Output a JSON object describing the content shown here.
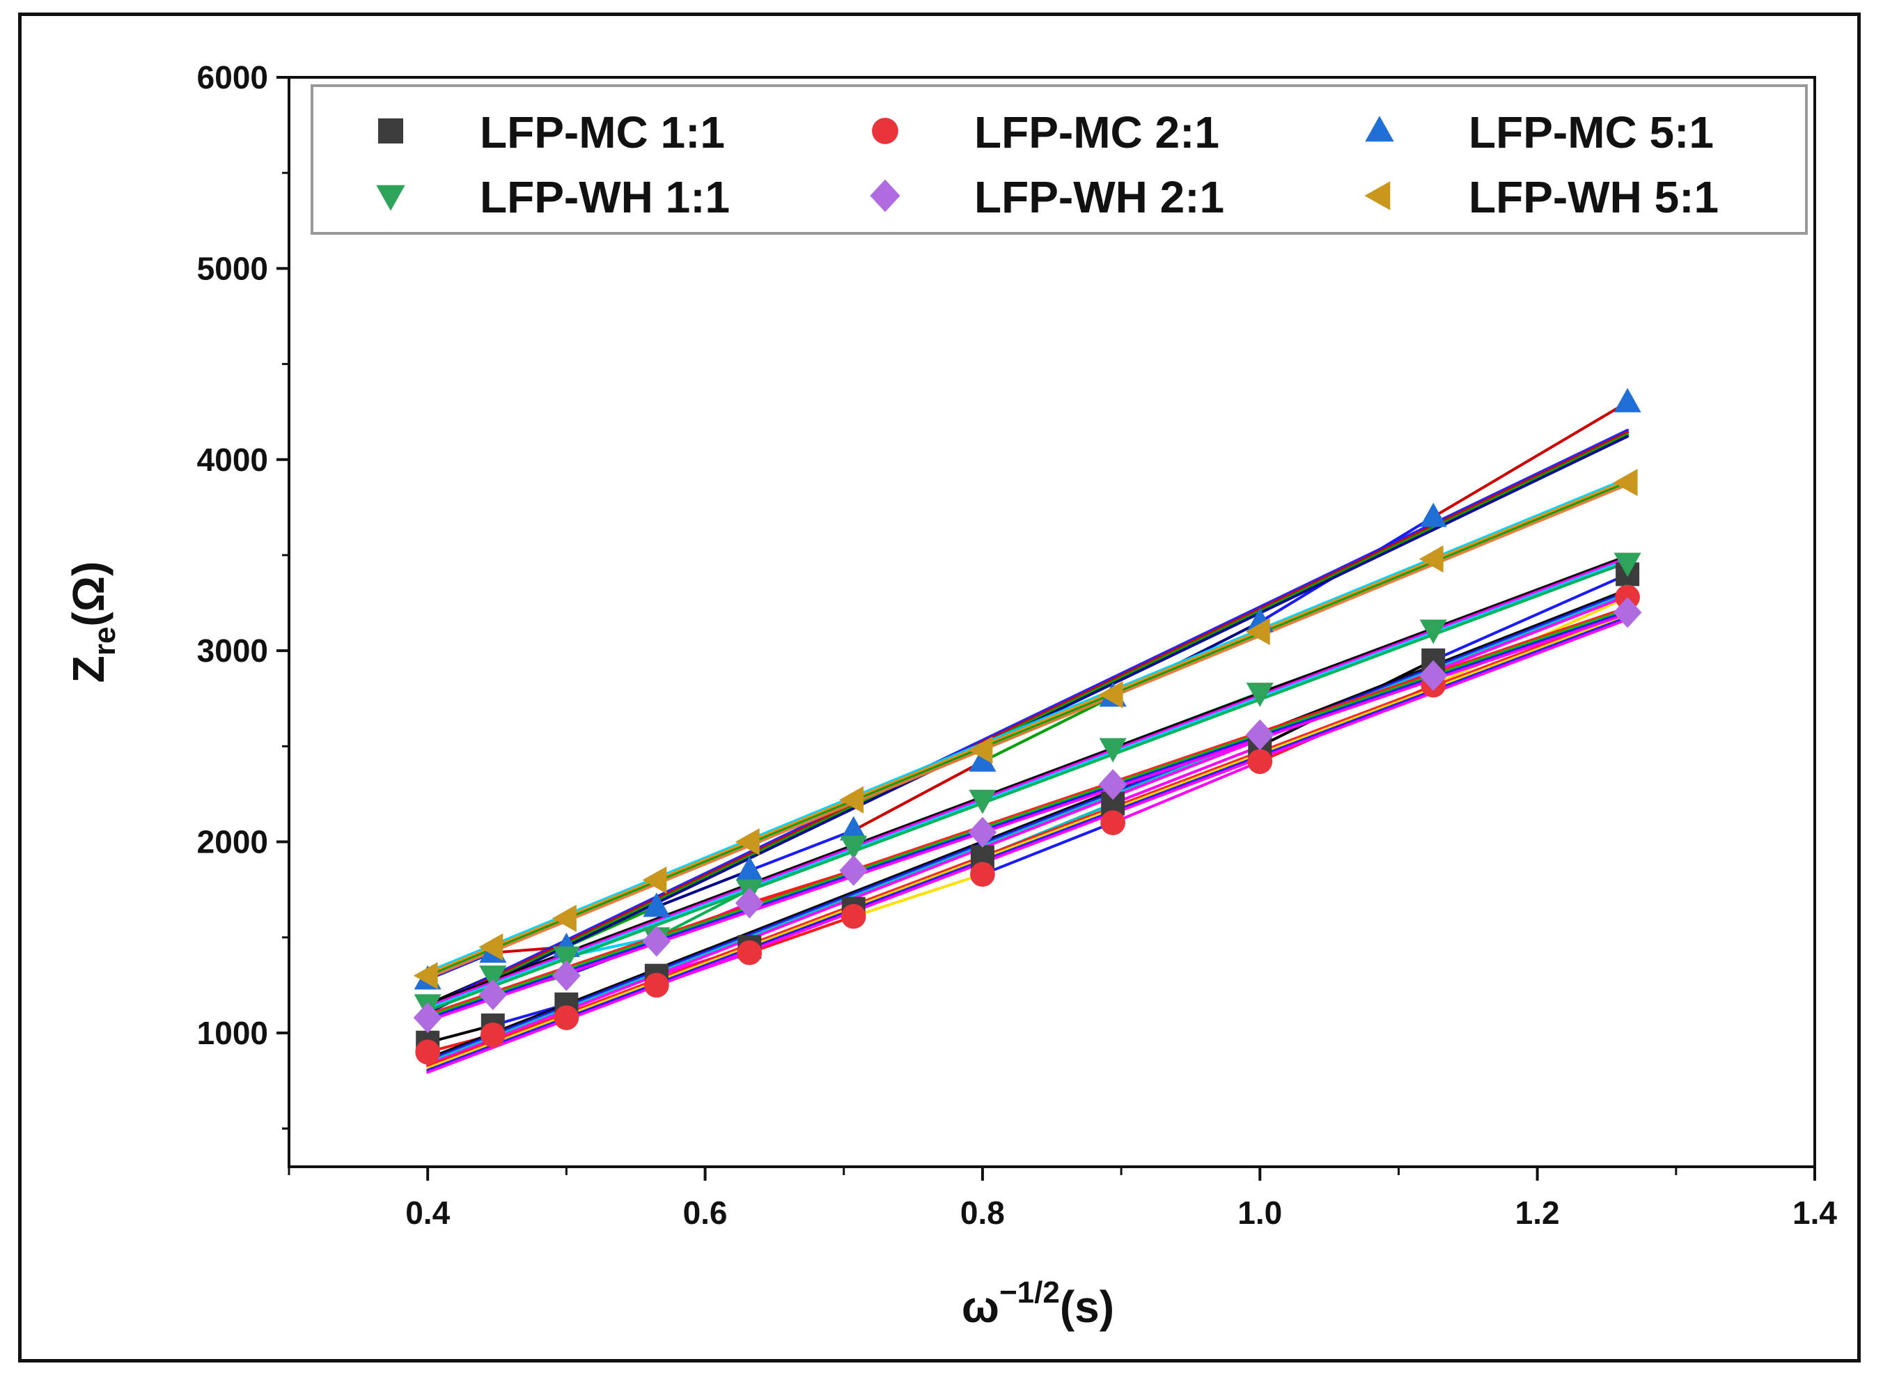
{
  "chart_data": {
    "type": "scatter",
    "title": "",
    "xlabel": {
      "base": "ω",
      "sup": "−1/2",
      "rest": "(s)"
    },
    "ylabel": {
      "base": "Z",
      "sub": "re",
      "rest": "(Ω)"
    },
    "xlim": [
      0.3,
      1.4
    ],
    "ylim": [
      300,
      6000
    ],
    "xticks": [
      0.4,
      0.6,
      0.8,
      1.0,
      1.2,
      1.4
    ],
    "xtick_labels": [
      "0.4",
      "0.6",
      "0.8",
      "1.0",
      "1.2",
      "1.4"
    ],
    "yticks": [
      1000,
      2000,
      3000,
      4000,
      5000,
      6000
    ],
    "ytick_labels": [
      "1000",
      "2000",
      "3000",
      "4000",
      "5000",
      "6000"
    ],
    "legend_position": "top",
    "series": [
      {
        "name": "LFP-MC 1:1",
        "marker": "square",
        "color": "#3c3c3c",
        "x": [
          0.4,
          0.447,
          0.5,
          0.565,
          0.632,
          0.707,
          0.8,
          0.894,
          1.0,
          1.125,
          1.265
        ],
        "y": [
          950,
          1040,
          1150,
          1300,
          1450,
          1650,
          1920,
          2200,
          2500,
          2950,
          3400
        ],
        "fit_colors": [
          "#000000",
          "#1a1aff",
          "#00c0c0",
          "#ff00ff"
        ]
      },
      {
        "name": "LFP-MC 2:1",
        "marker": "circle",
        "color": "#e8343a",
        "x": [
          0.4,
          0.447,
          0.5,
          0.565,
          0.632,
          0.707,
          0.8,
          0.894,
          1.0,
          1.125,
          1.265
        ],
        "y": [
          900,
          990,
          1080,
          1250,
          1420,
          1610,
          1830,
          2100,
          2420,
          2820,
          3280
        ],
        "fit_colors": [
          "#ff1a1a",
          "#ffe000",
          "#1a1aff",
          "#ff00ff"
        ]
      },
      {
        "name": "LFP-MC 5:1",
        "marker": "triangle-up",
        "color": "#1f6fd6",
        "x": [
          0.4,
          0.447,
          0.5,
          0.565,
          0.632,
          0.707,
          0.8,
          0.894,
          1.0,
          1.125,
          1.265
        ],
        "y": [
          1280,
          1420,
          1450,
          1660,
          1850,
          2060,
          2420,
          2760,
          3150,
          3700,
          4300
        ],
        "fit_colors": [
          "#1a1aff",
          "#cc0000",
          "#00a000",
          "#00008b"
        ]
      },
      {
        "name": "LFP-WH 1:1",
        "marker": "triangle-down",
        "color": "#2ea35a",
        "x": [
          0.4,
          0.447,
          0.5,
          0.565,
          0.632,
          0.707,
          0.8,
          0.894,
          1.0,
          1.125,
          1.265
        ],
        "y": [
          1150,
          1300,
          1400,
          1500,
          1750,
          1980,
          2220,
          2490,
          2780,
          3110,
          3460
        ],
        "fit_colors": [
          "#000000",
          "#ff00ff",
          "#00d0ff",
          "#00b050"
        ]
      },
      {
        "name": "LFP-WH 2:1",
        "marker": "diamond",
        "color": "#b06be0",
        "x": [
          0.4,
          0.447,
          0.5,
          0.565,
          0.632,
          0.707,
          0.8,
          0.894,
          1.0,
          1.125,
          1.265
        ],
        "y": [
          1080,
          1200,
          1300,
          1480,
          1680,
          1850,
          2050,
          2300,
          2560,
          2870,
          3200
        ],
        "fit_colors": [
          "#ff1a1a",
          "#00c000",
          "#1a1aff",
          "#ff00ff"
        ]
      },
      {
        "name": "LFP-WH 5:1",
        "marker": "triangle-left",
        "color": "#c9961e",
        "x": [
          0.4,
          0.447,
          0.5,
          0.565,
          0.632,
          0.707,
          0.8,
          0.894,
          1.0,
          1.125,
          1.265
        ],
        "y": [
          1300,
          1450,
          1600,
          1800,
          2000,
          2220,
          2480,
          2770,
          3100,
          3480,
          3880
        ],
        "fit_colors": [
          "#00d0ff",
          "#ff8c00",
          "#00a000",
          "#e07b39"
        ]
      }
    ]
  }
}
